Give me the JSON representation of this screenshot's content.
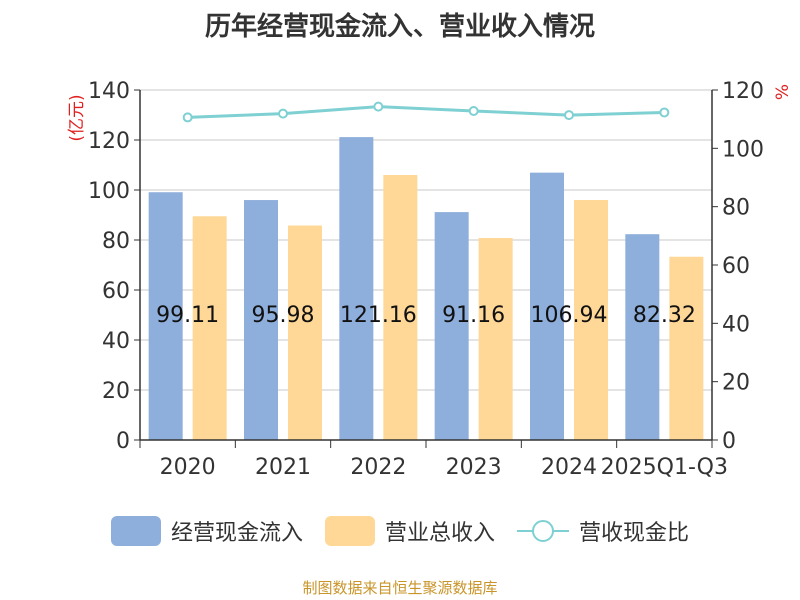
{
  "chart_data": {
    "type": "bar",
    "title": "历年经营现金流入、营业收入情况",
    "categories": [
      "2020",
      "2021",
      "2022",
      "2023",
      "2024",
      "2025Q1-Q3"
    ],
    "series": [
      {
        "name": "经营现金流入",
        "type": "bar",
        "axis": "left",
        "color": "#8eaedb",
        "values": [
          99.11,
          95.98,
          121.16,
          91.16,
          106.94,
          82.32
        ],
        "labels": [
          "99.11",
          "95.98",
          "121.16",
          "91.16",
          "106.94",
          "82.32"
        ]
      },
      {
        "name": "营业总收入",
        "type": "bar",
        "axis": "left",
        "color": "#ffd897",
        "values": [
          89.5,
          85.8,
          106.0,
          80.8,
          96.0,
          73.3
        ]
      },
      {
        "name": "营收现金比",
        "type": "line",
        "axis": "right",
        "color": "#7fd0d2",
        "values": [
          110.6,
          111.9,
          114.3,
          112.8,
          111.4,
          112.3
        ]
      }
    ],
    "yleft": {
      "label": "(亿元)",
      "min": 0,
      "max": 140,
      "ticks": [
        0,
        20,
        40,
        60,
        80,
        100,
        120,
        140
      ]
    },
    "yright": {
      "label": "%",
      "min": 0,
      "max": 120,
      "ticks": [
        0,
        20,
        40,
        60,
        80,
        100,
        120
      ]
    },
    "grid": true,
    "legend_position": "bottom"
  },
  "source_text": "制图数据来自恒生聚源数据库"
}
